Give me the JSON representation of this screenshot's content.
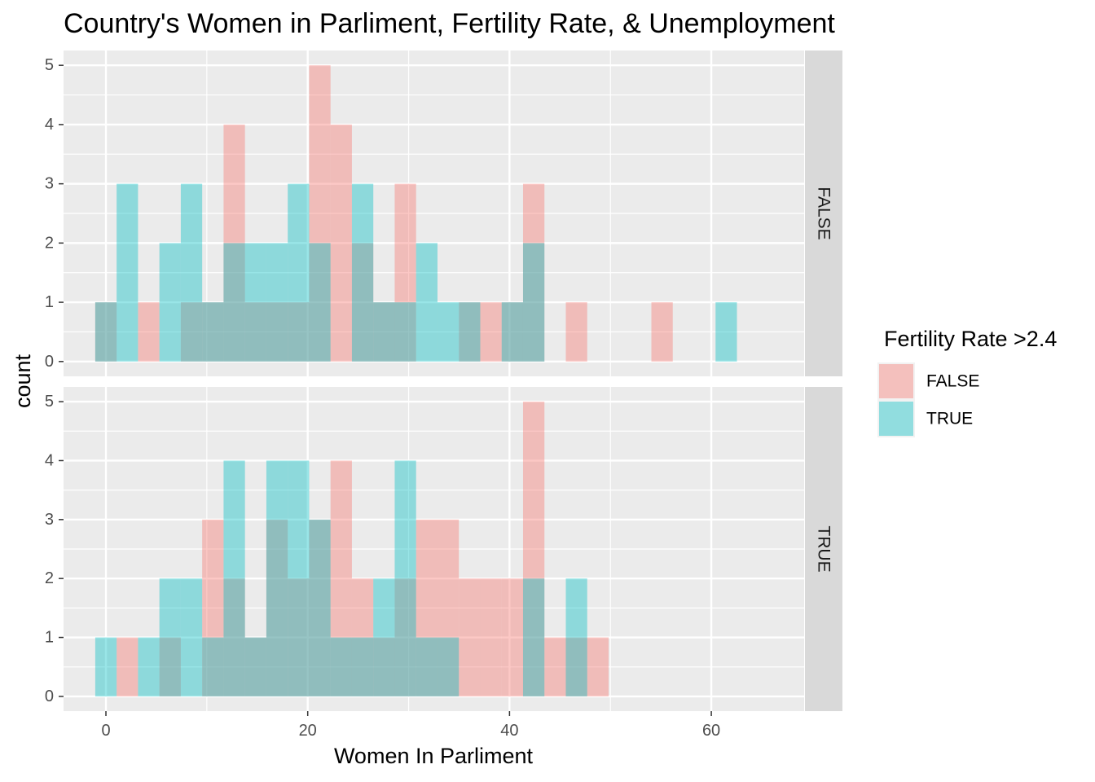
{
  "chart_data": {
    "type": "bar",
    "subtype": "faceted overlapping histogram",
    "title": "Country's Women in Parliment, Fertility Rate, & Unemployment",
    "xlabel": "Women In Parliment",
    "ylabel": "count",
    "xlim": [
      -4.2,
      69.2
    ],
    "ylim": [
      -0.25,
      5.25
    ],
    "x_ticks": [
      0,
      20,
      40,
      60
    ],
    "y_ticks": [
      0,
      1,
      2,
      3,
      4,
      5
    ],
    "bin_width": 2.12,
    "bin_start": -1.06,
    "bin_count": 30,
    "grid": true,
    "legend": {
      "title": "Fertility Rate >2.4",
      "position": "right",
      "entries": [
        {
          "label": "FALSE",
          "color": "#F8766D"
        },
        {
          "label": "TRUE",
          "color": "#00BFC4"
        }
      ]
    },
    "colors": {
      "false_fill": "#F8766D",
      "true_fill": "#00BFC4",
      "panel_bg": "#EBEBEB",
      "strip_bg": "#D9D9D9",
      "grid": "#FFFFFF"
    },
    "bar_opacity": 0.4,
    "facets": [
      {
        "label": "FALSE",
        "series": [
          {
            "name": "FALSE",
            "values": [
              1,
              0,
              1,
              0,
              1,
              1,
              4,
              1,
              1,
              1,
              5,
              4,
              2,
              1,
              3,
              0,
              0,
              1,
              1,
              1,
              3,
              0,
              1,
              0,
              0,
              0,
              1,
              0,
              0,
              0
            ]
          },
          {
            "name": "TRUE",
            "values": [
              1,
              3,
              0,
              2,
              3,
              1,
              2,
              2,
              2,
              3,
              2,
              0,
              3,
              1,
              1,
              2,
              1,
              1,
              0,
              1,
              2,
              0,
              0,
              0,
              0,
              0,
              0,
              0,
              0,
              1
            ]
          }
        ]
      },
      {
        "label": "TRUE",
        "series": [
          {
            "name": "FALSE",
            "values": [
              0,
              1,
              0,
              1,
              0,
              3,
              2,
              1,
              3,
              2,
              3,
              4,
              2,
              1,
              2,
              3,
              3,
              2,
              2,
              2,
              5,
              1,
              1,
              1,
              0,
              0,
              0,
              0,
              0,
              0
            ]
          },
          {
            "name": "TRUE",
            "values": [
              1,
              0,
              1,
              2,
              2,
              1,
              4,
              1,
              4,
              4,
              3,
              1,
              1,
              2,
              4,
              1,
              1,
              0,
              0,
              0,
              2,
              0,
              2,
              0,
              0,
              0,
              0,
              0,
              0,
              0
            ]
          }
        ]
      }
    ]
  }
}
